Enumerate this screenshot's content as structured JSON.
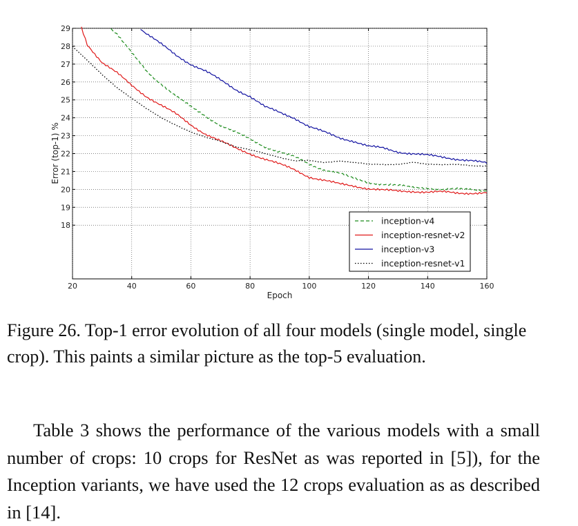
{
  "chart_data": {
    "type": "line",
    "title": "",
    "xlabel": "Epoch",
    "ylabel": "Error (top-1) %",
    "xlim": [
      20,
      160
    ],
    "ylim": [
      15,
      29
    ],
    "grid": true,
    "xticks": [
      "20",
      "40",
      "60",
      "80",
      "100",
      "120",
      "140",
      "160"
    ],
    "yticks": [
      "18",
      "19",
      "20",
      "21",
      "22",
      "23",
      "24",
      "25",
      "26",
      "27",
      "28",
      "29"
    ],
    "legend_position": "bottom-right",
    "series": [
      {
        "name": "inception-v4",
        "color": "#1a8a1a",
        "style": "dashed",
        "x": [
          33,
          35,
          40,
          45,
          50,
          55,
          60,
          65,
          70,
          75,
          80,
          85,
          90,
          95,
          100,
          105,
          110,
          115,
          120,
          125,
          130,
          135,
          140,
          145,
          150,
          155,
          160
        ],
        "y": [
          29.0,
          28.7,
          27.6,
          26.6,
          25.9,
          25.2,
          24.6,
          24.1,
          23.6,
          23.2,
          22.8,
          22.4,
          22.1,
          21.8,
          21.4,
          21.1,
          20.9,
          20.6,
          20.4,
          20.3,
          20.2,
          20.1,
          20.1,
          20.0,
          20.0,
          20.0,
          19.95
        ]
      },
      {
        "name": "inception-resnet-v2",
        "color": "#e01818",
        "style": "solid",
        "x": [
          23,
          25,
          30,
          35,
          40,
          45,
          50,
          55,
          60,
          65,
          70,
          75,
          80,
          85,
          90,
          95,
          100,
          105,
          110,
          115,
          120,
          125,
          130,
          135,
          140,
          145,
          150,
          155,
          160
        ],
        "y": [
          29.0,
          28.1,
          27.1,
          26.5,
          25.8,
          25.2,
          24.7,
          24.2,
          23.6,
          23.1,
          22.7,
          22.3,
          22.0,
          21.7,
          21.4,
          21.1,
          20.7,
          20.5,
          20.3,
          20.2,
          20.05,
          19.95,
          19.9,
          19.9,
          19.85,
          19.85,
          19.8,
          19.8,
          19.8
        ]
      },
      {
        "name": "inception-v3",
        "color": "#1010a0",
        "style": "solid",
        "x": [
          43,
          45,
          50,
          55,
          60,
          65,
          70,
          75,
          80,
          85,
          90,
          95,
          100,
          105,
          110,
          115,
          120,
          125,
          130,
          135,
          140,
          145,
          150,
          155,
          160
        ],
        "y": [
          29.0,
          28.7,
          28.1,
          27.5,
          27.0,
          26.6,
          26.1,
          25.6,
          25.2,
          24.6,
          24.3,
          24.0,
          23.5,
          23.2,
          22.9,
          22.7,
          22.4,
          22.3,
          22.1,
          22.0,
          21.9,
          21.8,
          21.7,
          21.6,
          21.45
        ]
      },
      {
        "name": "inception-resnet-v1",
        "color": "#000000",
        "style": "dotted",
        "x": [
          20,
          25,
          30,
          35,
          40,
          45,
          50,
          55,
          60,
          65,
          70,
          75,
          80,
          85,
          90,
          95,
          100,
          105,
          110,
          115,
          120,
          125,
          130,
          135,
          140,
          145,
          150,
          155,
          160
        ],
        "y": [
          28.0,
          27.2,
          26.4,
          25.7,
          25.1,
          24.5,
          24.0,
          23.6,
          23.2,
          22.9,
          22.7,
          22.4,
          22.2,
          22.0,
          21.8,
          21.6,
          21.6,
          21.5,
          21.6,
          21.5,
          21.4,
          21.4,
          21.4,
          21.5,
          21.4,
          21.4,
          21.4,
          21.3,
          21.3
        ]
      }
    ]
  },
  "caption": "Figure 26. Top-1 error evolution of all four models (single model, single crop). This paints a similar picture as the top-5 evaluation.",
  "body_paragraph": "Table 3 shows the performance of the various models with a small number of crops: 10 crops for ResNet as was reported in [5]), for the Inception variants, we have used the 12 crops evaluation as as described in [14]."
}
